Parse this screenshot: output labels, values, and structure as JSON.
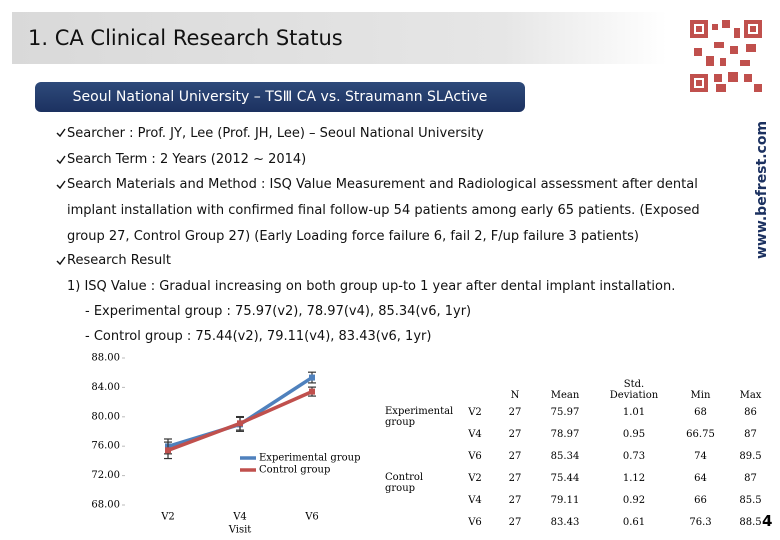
{
  "header": {
    "title": "1. CA Clinical Research Status"
  },
  "banner": "Seoul National University – TSⅢ CA vs. Straumann SLActive",
  "bullets": [
    "Searcher : Prof. JY, Lee (Prof. JH, Lee) – Seoul National University",
    "Search Term : 2 Years (2012 ~ 2014)",
    "Search Materials and Method : ISQ Value Measurement and Radiological assessment after dental implant installation with confirmed final follow-up 54 patients among early 65 patients. (Exposed group 27, Control Group 27) (Early Loading force failure 6, fail 2, F/up failure 3 patients)",
    "Research Result"
  ],
  "result_details": [
    "1) ISQ Value : Gradual increasing on both group up-to 1 year after dental implant installation.",
    "- Experimental group : 75.97(v2), 78.97(v4), 85.34(v6, 1yr)",
    "- Control group : 75.44(v2), 79.11(v4), 83.43(v6, 1yr)"
  ],
  "side_text": "www.befrest.com",
  "page_number": "4",
  "chart_data": {
    "type": "line",
    "categories": [
      "V2",
      "V4",
      "V6"
    ],
    "x_label": "Visit",
    "ylim": [
      68,
      88
    ],
    "yticks": [
      {
        "value": 68,
        "label": "68.00"
      },
      {
        "value": 72,
        "label": "72.00"
      },
      {
        "value": 76,
        "label": "76.00"
      },
      {
        "value": 80,
        "label": "80.00"
      },
      {
        "value": 84,
        "label": "84.00"
      },
      {
        "value": 88,
        "label": "88.00"
      }
    ],
    "series": [
      {
        "name": "Experimental group",
        "color": "#4f81bd",
        "values": [
          75.97,
          78.97,
          85.34
        ],
        "errors": [
          1.01,
          0.95,
          0.73
        ]
      },
      {
        "name": "Control group",
        "color": "#c0504d",
        "values": [
          75.44,
          79.11,
          83.43
        ],
        "errors": [
          1.12,
          0.92,
          0.61
        ]
      }
    ]
  },
  "table": {
    "columns": [
      "N",
      "Mean",
      "Std. Deviation",
      "Min",
      "Max"
    ],
    "groups": [
      {
        "name": "Experimental group",
        "rows": [
          {
            "visit": "V2",
            "cells": [
              "27",
              "75.97",
              "1.01",
              "68",
              "86"
            ]
          },
          {
            "visit": "V4",
            "cells": [
              "27",
              "78.97",
              "0.95",
              "66.75",
              "87"
            ]
          },
          {
            "visit": "V6",
            "cells": [
              "27",
              "85.34",
              "0.73",
              "74",
              "89.5"
            ]
          }
        ]
      },
      {
        "name": "Control group",
        "rows": [
          {
            "visit": "V2",
            "cells": [
              "27",
              "75.44",
              "1.12",
              "64",
              "87"
            ]
          },
          {
            "visit": "V4",
            "cells": [
              "27",
              "79.11",
              "0.92",
              "66",
              "85.5"
            ]
          },
          {
            "visit": "V6",
            "cells": [
              "27",
              "83.43",
              "0.61",
              "76.3",
              "88.5"
            ]
          }
        ]
      }
    ]
  }
}
